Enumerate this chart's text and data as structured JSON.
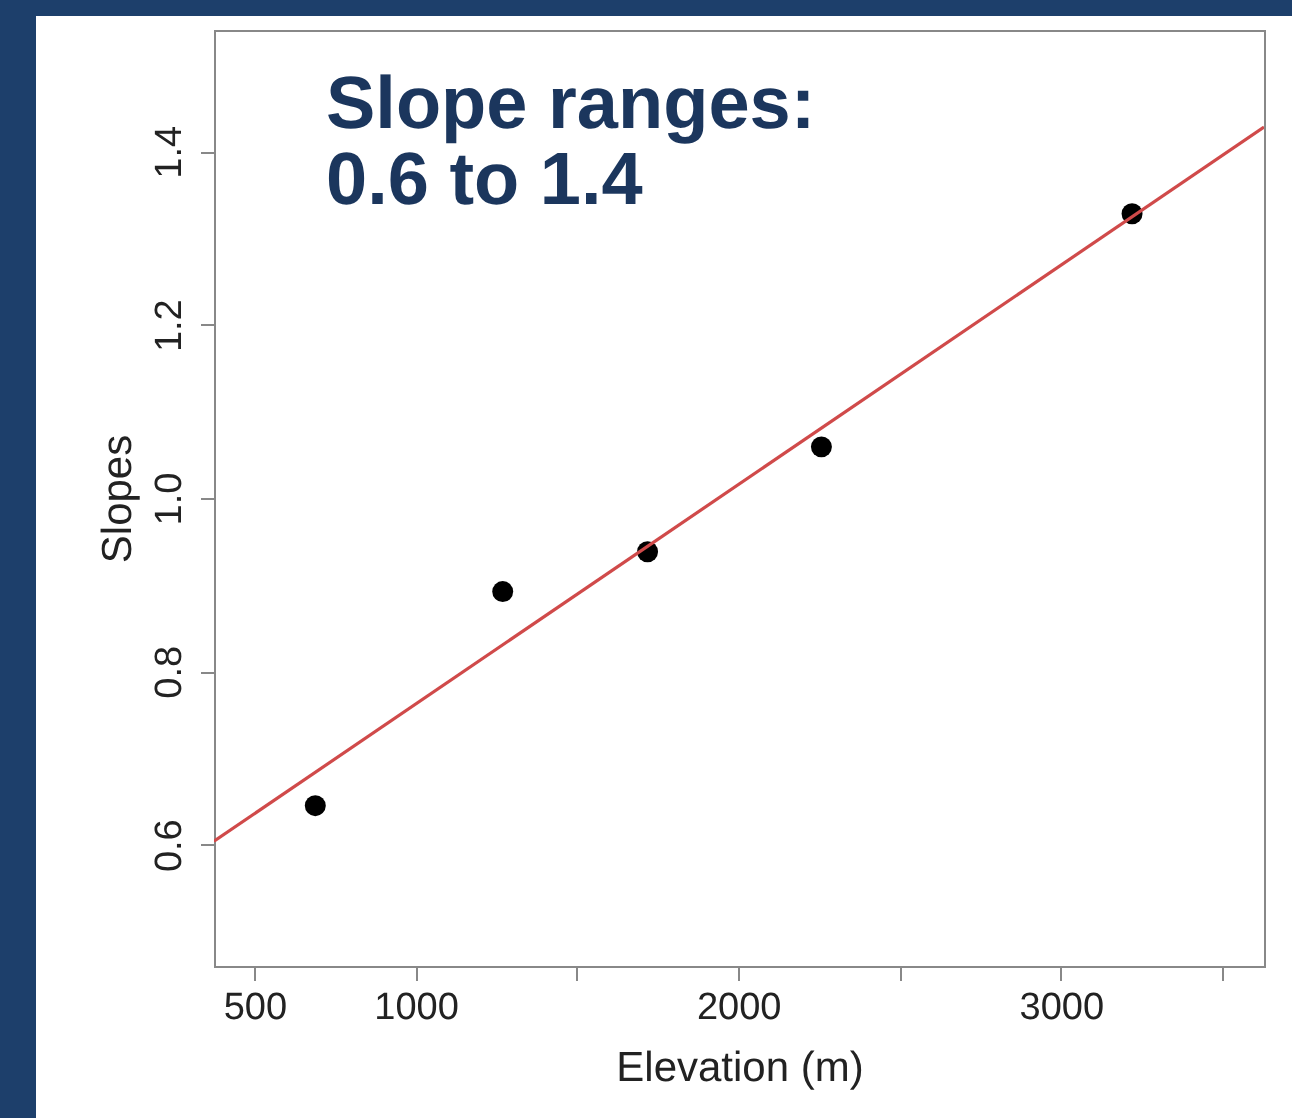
{
  "chart_data": {
    "type": "scatter",
    "xlabel": "Elevation (m)",
    "ylabel": "Slopes",
    "annotations": [
      "Slope ranges:\n0.6 to 1.4"
    ],
    "xlim": [
      375,
      3630
    ],
    "ylim": [
      0.46,
      1.54
    ],
    "xticks": [
      500,
      1000,
      {
        "value": 1500,
        "label": null
      },
      2000,
      {
        "value": 2500,
        "label": null
      },
      3000,
      {
        "value": 3500,
        "label": null
      }
    ],
    "yticks": [
      0.6,
      0.8,
      {
        "value": 1.0,
        "label": "1.0"
      },
      1.2,
      1.4
    ],
    "grid": false,
    "series": [
      {
        "color": "#000000",
        "marker": "circle",
        "x": [
          689,
          1270,
          1719,
          2258,
          3221
        ],
        "values": [
          0.645,
          0.892,
          0.938,
          1.059,
          1.328
        ]
      },
      {
        "type": "line",
        "marker": "none",
        "color": "#d04a4a",
        "x": [
          375,
          3630
        ],
        "values": [
          0.604,
          1.428
        ]
      }
    ]
  }
}
